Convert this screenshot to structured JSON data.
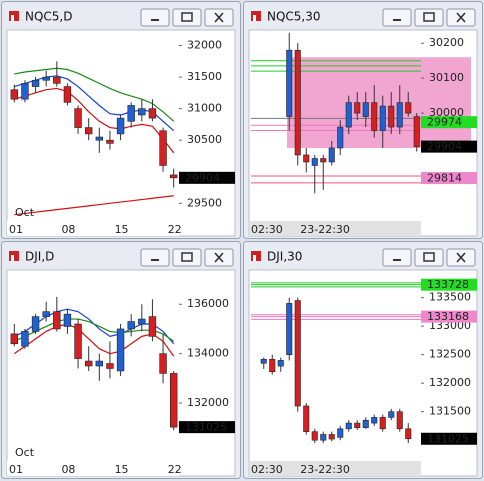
{
  "windows": [
    {
      "title": "NQC5,D",
      "sublabel": "Oct",
      "ylim": [
        29220,
        32230
      ],
      "yticks": [
        32000,
        31500,
        31000,
        30500,
        29500
      ],
      "categories": [
        "01",
        null,
        null,
        null,
        null,
        "08",
        null,
        null,
        null,
        null,
        "15",
        null,
        null,
        null,
        null,
        "22"
      ],
      "ohlc": [
        [
          31300,
          31380,
          31100,
          31150
        ],
        [
          31150,
          31450,
          31100,
          31400
        ],
        [
          31350,
          31500,
          31250,
          31450
        ],
        [
          31450,
          31600,
          31350,
          31500
        ],
        [
          31500,
          31750,
          31350,
          31400
        ],
        [
          31350,
          31400,
          31050,
          31100
        ],
        [
          31000,
          31050,
          30600,
          30700
        ],
        [
          30700,
          30850,
          30500,
          30600
        ],
        [
          30500,
          30700,
          30300,
          30550
        ],
        [
          30500,
          30650,
          30350,
          30450
        ],
        [
          30600,
          30900,
          30500,
          30850
        ],
        [
          30800,
          31100,
          30700,
          31050
        ],
        [
          30900,
          31150,
          30800,
          31000
        ],
        [
          31000,
          31150,
          30800,
          30850
        ],
        [
          30650,
          30700,
          30000,
          30100
        ],
        [
          29950,
          30050,
          29750,
          29904
        ]
      ],
      "lines": [
        {
          "color": "#1a8a1a",
          "values": [
            31550,
            31580,
            31600,
            31620,
            31640,
            31620,
            31560,
            31480,
            31400,
            31320,
            31250,
            31200,
            31150,
            31080,
            30950,
            30800
          ]
        },
        {
          "color": "#1a3fd0",
          "values": [
            31350,
            31400,
            31450,
            31500,
            31520,
            31470,
            31350,
            31200,
            31050,
            30920,
            30900,
            30950,
            30980,
            30950,
            30800,
            30650
          ]
        },
        {
          "color": "#d01010",
          "values": [
            31150,
            31200,
            31250,
            31300,
            31320,
            31270,
            31130,
            30950,
            30800,
            30700,
            30680,
            30720,
            30750,
            30720,
            30520,
            30300
          ]
        },
        {
          "color": "#d01010",
          "values": [
            29320,
            29340,
            29360,
            29380,
            29400,
            29420,
            29440,
            29460,
            29480,
            29500,
            29520,
            29540,
            29560,
            29580,
            29600,
            29620
          ]
        }
      ],
      "levels": [],
      "tags": [
        {
          "value": 29904,
          "color": "#000000",
          "text_color": "#ffffff"
        }
      ]
    },
    {
      "title": "NQC5,30",
      "sublabel": null,
      "ylim": [
        29691,
        30235
      ],
      "yticks": [
        30200,
        30100,
        30000
      ],
      "categories": [
        "02:30",
        null,
        null,
        null,
        null,
        null,
        "23-22:30",
        null,
        null,
        null,
        null,
        null,
        null,
        null,
        null,
        null,
        null,
        null,
        null,
        null
      ],
      "ohlc": [
        null,
        null,
        null,
        null,
        [
          29990,
          30230,
          29950,
          30180
        ],
        [
          30180,
          30200,
          29850,
          29880
        ],
        [
          29880,
          29900,
          29830,
          29860
        ],
        [
          29850,
          29880,
          29770,
          29870
        ],
        [
          29870,
          29880,
          29780,
          29860
        ],
        [
          29860,
          29920,
          29850,
          29900
        ],
        [
          29900,
          29980,
          29880,
          29960
        ],
        [
          29960,
          30050,
          29940,
          30030
        ],
        [
          30030,
          30060,
          29980,
          30000
        ],
        [
          29990,
          30060,
          29960,
          30030
        ],
        [
          30030,
          30080,
          29930,
          29950
        ],
        [
          29950,
          30050,
          29900,
          30020
        ],
        [
          30020,
          30060,
          29940,
          29960
        ],
        [
          29960,
          30080,
          29940,
          30030
        ],
        [
          30030,
          30060,
          29990,
          30000
        ],
        [
          29990,
          30000,
          29890,
          29904
        ]
      ],
      "zone": [
        29900,
        30160
      ],
      "lines": [],
      "levels": [
        {
          "value": 30150,
          "color": "#22cc22"
        },
        {
          "value": 30135,
          "color": "#22cc22"
        },
        {
          "value": 30120,
          "color": "#22cc22"
        },
        {
          "value": 29985,
          "color": "#777777"
        },
        {
          "value": 29965,
          "color": "#ee77bb"
        },
        {
          "value": 29950,
          "color": "#ee77bb"
        },
        {
          "value": 29820,
          "color": "#ee5577"
        },
        {
          "value": 29800,
          "color": "#ee5577"
        }
      ],
      "tags": [
        {
          "value": 29974,
          "color": "#22dd22",
          "text_color": "#000000"
        },
        {
          "value": 29904,
          "color": "#000000",
          "text_color": "#ffffff"
        },
        {
          "value": 29814,
          "color": "#ee88cc",
          "text_color": "#000000"
        }
      ]
    },
    {
      "title": "DJI,D",
      "sublabel": "Oct",
      "ylim": [
        129654,
        137346
      ],
      "yticks": [
        136000,
        134000,
        132000
      ],
      "categories": [
        "01",
        null,
        null,
        null,
        null,
        "08",
        null,
        null,
        null,
        null,
        "15",
        null,
        null,
        null,
        null,
        "22"
      ],
      "ohlc": [
        [
          134800,
          135200,
          134300,
          134400
        ],
        [
          134300,
          135000,
          134200,
          134900
        ],
        [
          134900,
          135600,
          134800,
          135500
        ],
        [
          135500,
          136100,
          135300,
          135700
        ],
        [
          135700,
          136300,
          134900,
          135000
        ],
        [
          135100,
          135800,
          134800,
          135600
        ],
        [
          135200,
          135400,
          133400,
          133800
        ],
        [
          133700,
          134300,
          133300,
          133500
        ],
        [
          133500,
          134000,
          132900,
          133700
        ],
        [
          133600,
          134500,
          133000,
          133400
        ],
        [
          133300,
          135200,
          133100,
          135000
        ],
        [
          135000,
          135600,
          134700,
          135300
        ],
        [
          135200,
          136000,
          134900,
          135400
        ],
        [
          135500,
          136200,
          134500,
          134700
        ],
        [
          134000,
          134800,
          132800,
          133200
        ],
        [
          133200,
          133300,
          130900,
          131025
        ]
      ],
      "lines": [
        {
          "color": "#1a3fd0",
          "values": [
            134700,
            134900,
            135200,
            135500,
            135700,
            135800,
            135700,
            135400,
            135000,
            134700,
            134800,
            135000,
            135200,
            135200,
            134900,
            134400
          ]
        },
        {
          "color": "#1a8a1a",
          "values": [
            134500,
            134700,
            134900,
            135100,
            135300,
            135400,
            135400,
            135300,
            135100,
            134900,
            134850,
            134900,
            134950,
            134950,
            134800,
            134500
          ]
        },
        {
          "color": "#d01010",
          "values": [
            134000,
            134300,
            134600,
            134900,
            135100,
            135200,
            135000,
            134600,
            134200,
            134000,
            134100,
            134400,
            134700,
            134800,
            134500,
            133900
          ]
        }
      ],
      "levels": [],
      "tags": [
        {
          "value": 131025,
          "color": "#000000",
          "text_color": "#ffffff"
        }
      ]
    },
    {
      "title": "DJI,30",
      "sublabel": null,
      "ylim": [
        130635,
        133968
      ],
      "yticks": [
        133500,
        133000,
        132500,
        132000,
        131500
      ],
      "categories": [
        "02:30",
        null,
        null,
        null,
        null,
        null,
        "23-22:30",
        null,
        null,
        null,
        null,
        null,
        null,
        null,
        null,
        null,
        null,
        null,
        null,
        null
      ],
      "ohlc": [
        null,
        [
          132350,
          132450,
          132250,
          132420
        ],
        [
          132420,
          132500,
          132150,
          132200
        ],
        [
          132300,
          132450,
          132200,
          132400
        ],
        [
          132500,
          133500,
          132400,
          133400
        ],
        [
          133450,
          133500,
          131500,
          131600
        ],
        [
          131600,
          131650,
          131100,
          131150
        ],
        [
          131150,
          131200,
          130950,
          131000
        ],
        [
          131000,
          131150,
          130950,
          131100
        ],
        [
          131100,
          131150,
          130980,
          131020
        ],
        [
          131050,
          131250,
          131000,
          131200
        ],
        [
          131200,
          131350,
          131150,
          131300
        ],
        [
          131300,
          131350,
          131180,
          131220
        ],
        [
          131220,
          131400,
          131200,
          131350
        ],
        [
          131300,
          131450,
          131250,
          131400
        ],
        [
          131400,
          131450,
          131150,
          131200
        ],
        [
          131400,
          131550,
          131350,
          131500
        ],
        [
          131500,
          131550,
          131150,
          131200
        ],
        [
          131200,
          131300,
          130950,
          131025
        ],
        null
      ],
      "lines": [],
      "levels": [
        {
          "value": 133760,
          "color": "#22cc22"
        },
        {
          "value": 133728,
          "color": "#22cc22"
        },
        {
          "value": 133690,
          "color": "#22cc22"
        },
        {
          "value": 133200,
          "color": "#ee77bb"
        },
        {
          "value": 133168,
          "color": "#ee77bb"
        },
        {
          "value": 133120,
          "color": "#ee77bb"
        }
      ],
      "tags": [
        {
          "value": 133728,
          "color": "#22dd22",
          "text_color": "#000000"
        },
        {
          "value": 133168,
          "color": "#ee88cc",
          "text_color": "#000000"
        },
        {
          "value": 131025,
          "color": "#000000",
          "text_color": "#ffffff"
        }
      ]
    }
  ]
}
